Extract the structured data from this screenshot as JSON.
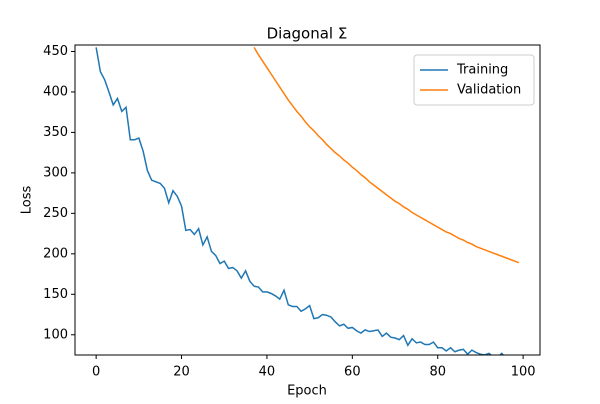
{
  "chart_data": {
    "type": "line",
    "title": "Diagonal Σ",
    "xlabel": "Epoch",
    "ylabel": "Loss",
    "x": [
      0,
      1,
      2,
      3,
      4,
      5,
      6,
      7,
      8,
      9,
      10,
      11,
      12,
      13,
      14,
      15,
      16,
      17,
      18,
      19,
      20,
      21,
      22,
      23,
      24,
      25,
      26,
      27,
      28,
      29,
      30,
      31,
      32,
      33,
      34,
      35,
      36,
      37,
      38,
      39,
      40,
      41,
      42,
      43,
      44,
      45,
      46,
      47,
      48,
      49,
      50,
      51,
      52,
      53,
      54,
      55,
      56,
      57,
      58,
      59,
      60,
      61,
      62,
      63,
      64,
      65,
      66,
      67,
      68,
      69,
      70,
      71,
      72,
      73,
      74,
      75,
      76,
      77,
      78,
      79,
      80,
      81,
      82,
      83,
      84,
      85,
      86,
      87,
      88,
      89,
      90,
      91,
      92,
      93,
      94,
      95,
      96,
      97,
      98,
      99
    ],
    "series": [
      {
        "name": "Training",
        "color": "#1f77b4",
        "values": [
          455,
          425,
          415,
          400,
          384,
          392,
          376,
          381,
          341,
          341,
          343,
          327,
          303,
          291,
          289,
          287,
          281,
          263,
          278,
          271,
          259,
          229,
          230,
          224,
          231,
          211,
          221,
          203,
          198,
          188,
          191,
          182,
          183,
          179,
          170,
          179,
          166,
          160,
          159,
          153,
          153,
          151,
          148,
          144,
          155,
          137,
          135,
          135,
          129,
          132,
          136,
          120,
          121,
          125,
          124,
          122,
          116,
          111,
          113,
          108,
          109,
          105,
          102,
          106,
          104,
          105,
          106,
          98,
          102,
          97,
          96,
          94,
          99,
          87,
          95,
          90,
          91,
          88,
          88,
          91,
          84,
          84,
          80,
          84,
          79,
          81,
          82,
          76,
          81,
          78,
          76,
          75,
          77,
          73,
          72,
          77,
          71,
          74,
          74,
          73
        ]
      },
      {
        "name": "Validation",
        "color": "#ff7f0e",
        "values": [
          null,
          null,
          null,
          null,
          null,
          null,
          null,
          null,
          null,
          null,
          null,
          null,
          null,
          null,
          null,
          null,
          null,
          null,
          null,
          null,
          null,
          null,
          null,
          null,
          null,
          null,
          null,
          null,
          null,
          null,
          null,
          null,
          null,
          null,
          null,
          null,
          null,
          455,
          446,
          438,
          430,
          422,
          414,
          406,
          398,
          390,
          383,
          376,
          370,
          363,
          357,
          352,
          346,
          341,
          335,
          330,
          325,
          321,
          316,
          312,
          307,
          303,
          298,
          294,
          289,
          285,
          281,
          277,
          273,
          269,
          265,
          262,
          258,
          255,
          251,
          248,
          245,
          242,
          239,
          236,
          233,
          230,
          227,
          225,
          222,
          219,
          217,
          214,
          212,
          209,
          207,
          205,
          203,
          201,
          199,
          197,
          195,
          193,
          191,
          189
        ]
      }
    ],
    "xlim": [
      -4.95,
      103.95
    ],
    "xticks": [
      0,
      20,
      40,
      60,
      80,
      100
    ],
    "ylim": [
      75,
      458
    ],
    "yticks": [
      100,
      150,
      200,
      250,
      300,
      350,
      400,
      450
    ],
    "legend": "upper right"
  }
}
